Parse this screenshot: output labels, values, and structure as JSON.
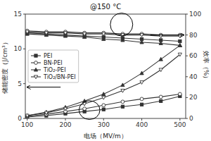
{
  "chart_data": {
    "type": "line",
    "title": "@150 °C",
    "xlabel": "电场（MV/m）",
    "ylabel": "储能密度（J/cm³）",
    "y2label": "效率（%）",
    "x": [
      100,
      150,
      200,
      250,
      300,
      350,
      400,
      450,
      500
    ],
    "xlim": [
      95,
      515
    ],
    "xticks": [
      100,
      200,
      300,
      400,
      500
    ],
    "ylim": [
      0,
      15
    ],
    "yticks": [
      0,
      5,
      10,
      15
    ],
    "y2lim": [
      0,
      100
    ],
    "y2ticks": [
      0,
      20,
      40,
      60,
      80,
      100
    ],
    "grid": false,
    "legend": "left",
    "series": [
      {
        "name": "PEI",
        "color": "#333333",
        "marker": "square",
        "values": [
          0.2,
          0.4,
          0.7,
          1.0,
          1.3,
          1.7,
          2.0,
          2.5,
          3.2
        ]
      },
      {
        "name": "BN-PEI",
        "color": "#333333",
        "marker": "circle-open",
        "values": [
          0.3,
          0.6,
          1.0,
          1.4,
          1.9,
          2.4,
          2.8,
          3.1,
          3.5
        ]
      },
      {
        "name": "TiO₂-PEI",
        "color": "#333333",
        "marker": "triangle-up",
        "values": [
          0.4,
          0.9,
          1.6,
          2.5,
          3.5,
          4.8,
          6.5,
          8.5,
          10.5
        ]
      },
      {
        "name": "TiO₂/BN-PEI",
        "color": "#333333",
        "marker": "triangle-down-open",
        "values": [
          0.4,
          0.8,
          1.4,
          2.1,
          3.0,
          4.0,
          5.2,
          7.0,
          9.2
        ]
      },
      {
        "axis": "y2",
        "color": "#333333",
        "marker": "square",
        "values": [
          82,
          81,
          80,
          79,
          78,
          77,
          76,
          75,
          74
        ]
      },
      {
        "axis": "y2",
        "color": "#333333",
        "marker": "circle-open",
        "values": [
          84,
          83,
          83,
          82,
          82,
          81,
          81,
          80,
          80
        ]
      },
      {
        "axis": "y2",
        "color": "#333333",
        "marker": "triangle-up",
        "values": [
          81,
          80,
          79,
          78,
          76,
          75,
          73,
          72,
          70
        ]
      },
      {
        "axis": "y2",
        "color": "#333333",
        "marker": "triangle-down-open",
        "values": [
          83,
          82,
          82,
          81,
          81,
          80,
          80,
          79,
          79
        ]
      }
    ]
  }
}
